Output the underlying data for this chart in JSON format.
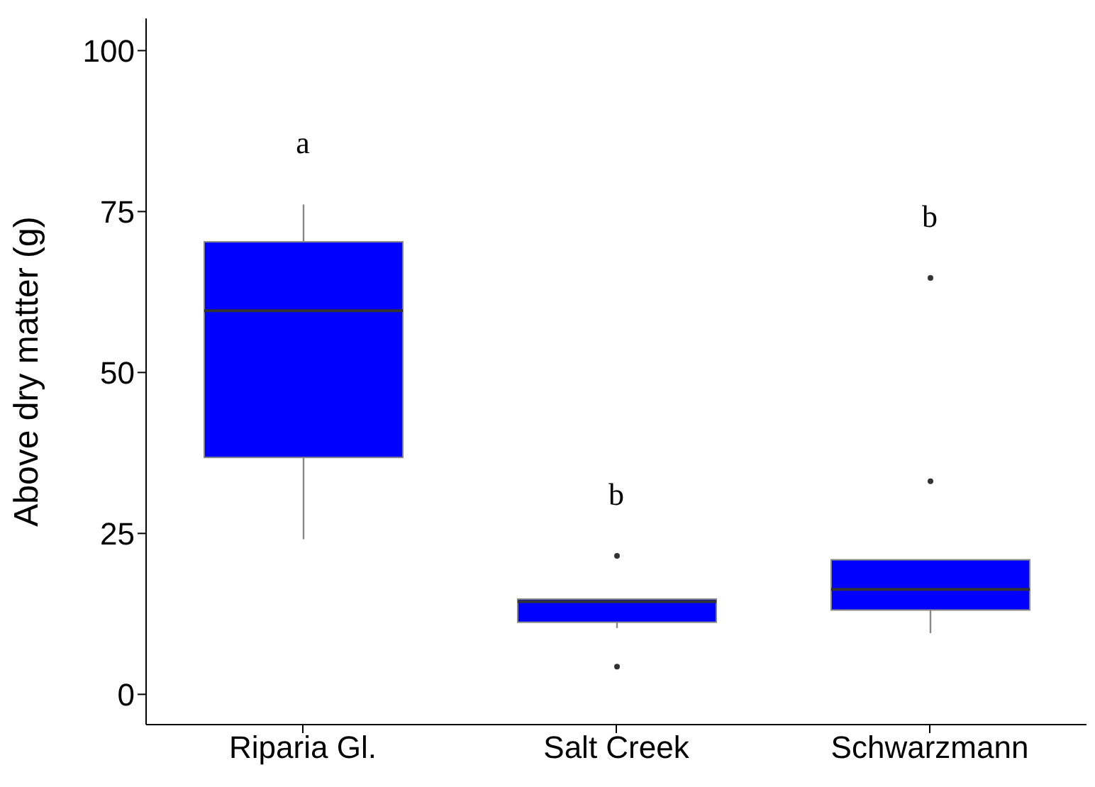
{
  "chart_data": {
    "type": "box",
    "ylabel": "Above dry matter (g)",
    "categories": [
      "Riparia Gl.",
      "Salt Creek",
      "Schwarzmann"
    ],
    "color": "#0000ff",
    "ylim": [
      -4.7,
      105
    ],
    "yticks": [
      0,
      25,
      50,
      75,
      100
    ],
    "grid": false,
    "legend": false,
    "boxes": [
      {
        "low": 24.1,
        "q1": 36.8,
        "median": 59.6,
        "q3": 70.3,
        "high": 76.1
      },
      {
        "low": 10.3,
        "q1": 11.2,
        "median": 14.4,
        "q3": 14.8,
        "high": 14.8,
        "outliers": [
          21.5,
          4.3
        ]
      },
      {
        "low": 9.5,
        "q1": 13.1,
        "median": 16.3,
        "q3": 20.9,
        "high": 20.9,
        "outliers": [
          64.7,
          33.1
        ]
      }
    ],
    "annotations": [
      "a",
      "b",
      "b"
    ]
  }
}
